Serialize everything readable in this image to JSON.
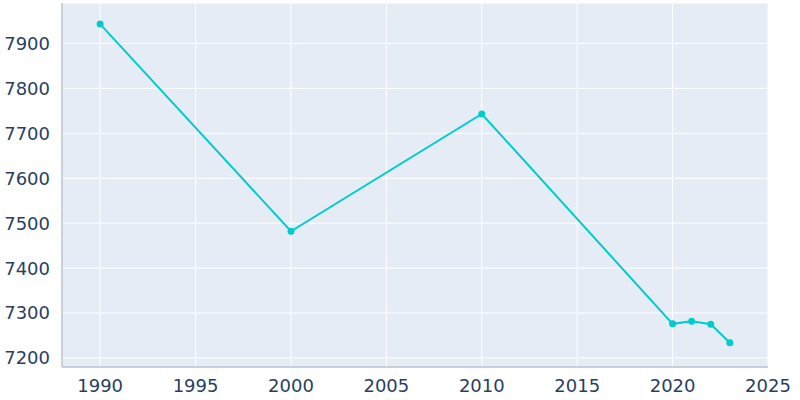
{
  "chart_data": {
    "type": "line",
    "x": [
      1990,
      2000,
      2010,
      2020,
      2021,
      2022,
      2023
    ],
    "values": [
      7943,
      7482,
      7743,
      7276,
      7282,
      7275,
      7234
    ],
    "color": "#00cccc",
    "marker": "circle",
    "xlim": [
      1988,
      2025
    ],
    "xticks": [
      1990,
      1995,
      2000,
      2005,
      2010,
      2015,
      2020,
      2025
    ],
    "ylim": [
      7180,
      7990
    ],
    "yticks": [
      7200,
      7300,
      7400,
      7500,
      7600,
      7700,
      7800,
      7900
    ],
    "grid": true
  }
}
